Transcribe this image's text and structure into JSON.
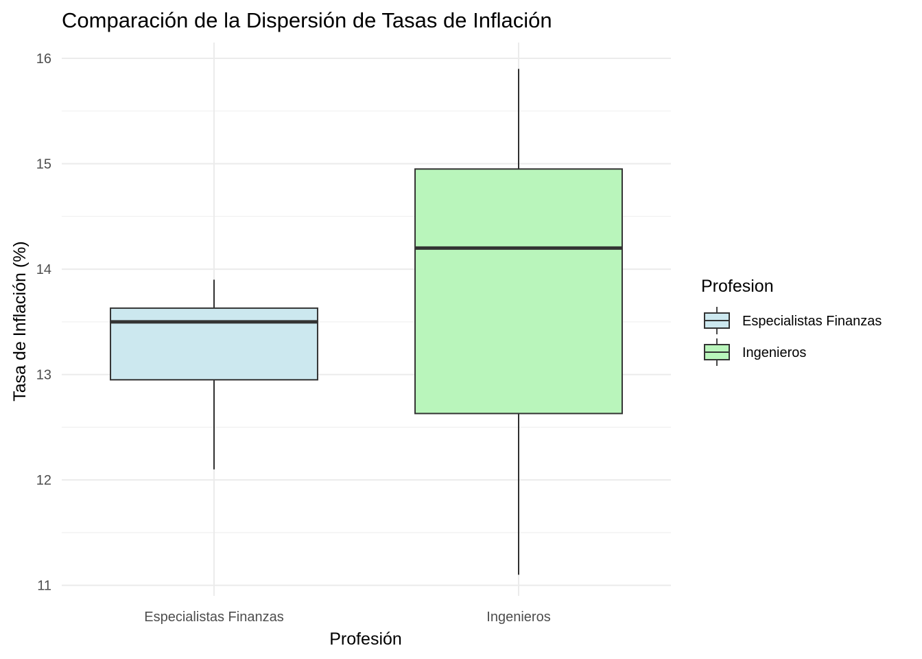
{
  "chart_data": {
    "type": "boxplot",
    "title": "Comparación de la Dispersión de Tasas de Inflación",
    "xlabel": "Profesión",
    "ylabel": "Tasa de Inflación (%)",
    "ylim": [
      10.9,
      16.15
    ],
    "yticks": [
      11,
      12,
      13,
      14,
      15,
      16
    ],
    "grid": true,
    "legend": {
      "title": "Profesion",
      "position": "right",
      "entries": [
        "Especialistas Finanzas",
        "Ingenieros"
      ]
    },
    "categories": [
      "Especialistas Finanzas",
      "Ingenieros"
    ],
    "series": [
      {
        "name": "Especialistas Finanzas",
        "color": "#cce8ef",
        "min": 12.1,
        "q1": 12.95,
        "median": 13.5,
        "q3": 13.63,
        "max": 13.9
      },
      {
        "name": "Ingenieros",
        "color": "#b9f5bb",
        "min": 11.1,
        "q1": 12.63,
        "median": 14.2,
        "q3": 14.95,
        "max": 15.9
      }
    ]
  }
}
